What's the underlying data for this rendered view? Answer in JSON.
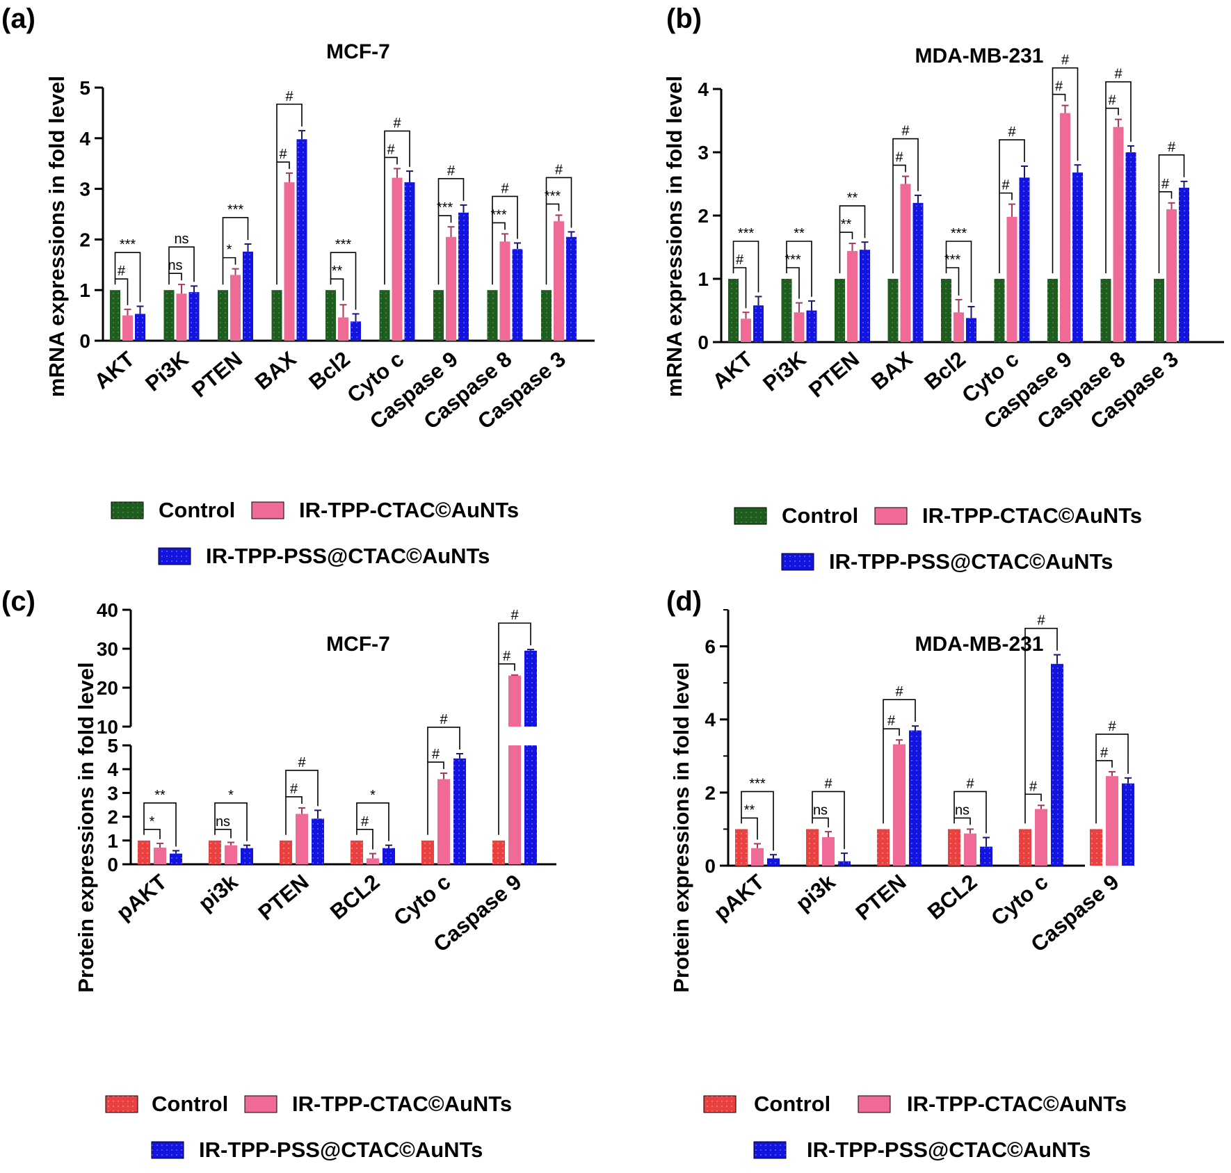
{
  "legend_series": [
    "Control",
    "IR-TPP-CTAC©AuNTs",
    "IR-TPP-PSS@CTAC©AuNTs"
  ],
  "colors": {
    "control_mrna": "#1f5d1f",
    "control_protein": "#e8413f",
    "ctac": "#ef6b96",
    "pss": "#1414e0"
  },
  "chart_data": [
    {
      "panel": "(a)",
      "type": "bar",
      "title": "MCF-7",
      "ylabel": "mRNA expressions in fold level",
      "categories": [
        "AKT",
        "Pi3K",
        "PTEN",
        "BAX",
        "Bcl2",
        "Cyto c",
        "Caspase 9",
        "Caspase 8",
        "Caspase 3"
      ],
      "series": [
        {
          "name": "Control",
          "values": [
            1,
            1,
            1,
            1,
            1,
            1,
            1,
            1,
            1
          ],
          "errors": [
            0,
            0,
            0,
            0,
            0,
            0,
            0,
            0,
            0
          ]
        },
        {
          "name": "IR-TPP-CTAC©AuNTs",
          "values": [
            0.5,
            0.93,
            1.3,
            3.13,
            0.46,
            3.22,
            2.05,
            1.96,
            2.36
          ],
          "errors": [
            0.12,
            0.18,
            0.12,
            0.18,
            0.25,
            0.18,
            0.2,
            0.15,
            0.12
          ]
        },
        {
          "name": "IR-TPP-PSS@CTAC©AuNTs",
          "values": [
            0.53,
            0.96,
            1.76,
            3.98,
            0.38,
            3.13,
            2.53,
            1.81,
            2.05
          ],
          "errors": [
            0.15,
            0.12,
            0.15,
            0.17,
            0.15,
            0.22,
            0.15,
            0.12,
            0.1
          ]
        }
      ],
      "significance": [
        {
          "cat": 0,
          "mid": "#",
          "far": "***"
        },
        {
          "cat": 1,
          "mid": "ns",
          "far": "ns"
        },
        {
          "cat": 2,
          "mid": "*",
          "far": "***"
        },
        {
          "cat": 3,
          "mid": "#",
          "far": "#"
        },
        {
          "cat": 4,
          "mid": "**",
          "far": "***"
        },
        {
          "cat": 5,
          "mid": "#",
          "far": "#"
        },
        {
          "cat": 6,
          "mid": "***",
          "far": "#"
        },
        {
          "cat": 7,
          "mid": "***",
          "far": "#"
        },
        {
          "cat": 8,
          "mid": "***",
          "far": "#"
        }
      ],
      "yticks": [
        "0",
        "1",
        "2",
        "3",
        "4",
        "5"
      ],
      "ylim": [
        0,
        5
      ]
    },
    {
      "panel": "(b)",
      "type": "bar",
      "title": "MDA-MB-231",
      "ylabel": "mRNA expressions in fold level",
      "categories": [
        "AKT",
        "Pi3K",
        "PTEN",
        "BAX",
        "Bcl2",
        "Cyto c",
        "Caspase 9",
        "Caspase 8",
        "Caspase 3"
      ],
      "series": [
        {
          "name": "Control",
          "values": [
            1,
            1,
            1,
            1,
            1,
            1,
            1,
            1,
            1
          ],
          "errors": [
            0,
            0,
            0,
            0,
            0,
            0,
            0,
            0,
            0
          ]
        },
        {
          "name": "IR-TPP-CTAC©AuNTs",
          "values": [
            0.37,
            0.47,
            1.44,
            2.5,
            0.47,
            1.98,
            3.62,
            3.4,
            2.1
          ],
          "errors": [
            0.1,
            0.15,
            0.12,
            0.12,
            0.2,
            0.2,
            0.12,
            0.12,
            0.1
          ]
        },
        {
          "name": "IR-TPP-PSS@CTAC©AuNTs",
          "values": [
            0.58,
            0.5,
            1.46,
            2.2,
            0.38,
            2.6,
            2.68,
            3.0,
            2.44
          ],
          "errors": [
            0.14,
            0.15,
            0.12,
            0.12,
            0.18,
            0.18,
            0.12,
            0.1,
            0.1
          ]
        }
      ],
      "significance": [
        {
          "cat": 0,
          "mid": "#",
          "far": "***"
        },
        {
          "cat": 1,
          "mid": "***",
          "far": "**"
        },
        {
          "cat": 2,
          "mid": "**",
          "far": "**"
        },
        {
          "cat": 3,
          "mid": "#",
          "far": "#"
        },
        {
          "cat": 4,
          "mid": "***",
          "far": "***"
        },
        {
          "cat": 5,
          "mid": "#",
          "far": "#"
        },
        {
          "cat": 6,
          "mid": "#",
          "far": "#"
        },
        {
          "cat": 7,
          "mid": "#",
          "far": "#"
        },
        {
          "cat": 8,
          "mid": "#",
          "far": "#"
        }
      ],
      "yticks": [
        "0",
        "1",
        "2",
        "3",
        "4"
      ],
      "ylim": [
        0,
        4
      ]
    },
    {
      "panel": "(c)",
      "type": "bar",
      "title": "MCF-7",
      "ylabel": "Protein expressions in fold level",
      "categories": [
        "pAKT",
        "pi3k",
        "PTEN",
        "BCL2",
        "Cyto c",
        "Caspase 9"
      ],
      "series": [
        {
          "name": "Control",
          "values": [
            1,
            1,
            1,
            1,
            1,
            1
          ],
          "errors": [
            0,
            0,
            0,
            0,
            0,
            0
          ]
        },
        {
          "name": "IR-TPP-CTAC©AuNTs",
          "values": [
            0.7,
            0.8,
            2.12,
            0.25,
            3.58,
            23.1
          ],
          "errors": [
            0.18,
            0.12,
            0.25,
            0.2,
            0.25,
            0.15
          ]
        },
        {
          "name": "IR-TPP-PSS@CTAC©AuNTs",
          "values": [
            0.45,
            0.68,
            1.92,
            0.68,
            4.45,
            29.5
          ],
          "errors": [
            0.12,
            0.12,
            0.35,
            0.12,
            0.2,
            0.3
          ]
        }
      ],
      "significance": [
        {
          "cat": 0,
          "mid": "*",
          "far": "**"
        },
        {
          "cat": 1,
          "mid": "ns",
          "far": "*"
        },
        {
          "cat": 2,
          "mid": "#",
          "far": "#"
        },
        {
          "cat": 3,
          "mid": "#",
          "far": "*"
        },
        {
          "cat": 4,
          "mid": "#",
          "far": "#"
        },
        {
          "cat": 5,
          "mid": "#",
          "far": "#"
        }
      ],
      "axis_break": {
        "lower": [
          0,
          5
        ],
        "upper": [
          10,
          40
        ]
      },
      "yticks_lower": [
        "0",
        "1",
        "2",
        "3",
        "4",
        "5"
      ],
      "yticks_upper": [
        "10",
        "20",
        "30",
        "40"
      ],
      "ylim": [
        0,
        40
      ]
    },
    {
      "panel": "(d)",
      "type": "bar",
      "title": "MDA-MB-231",
      "ylabel": "Protein expressions in fold level",
      "categories": [
        "pAKT",
        "pi3k",
        "PTEN",
        "BCL2",
        "Cyto c",
        "Caspase 9"
      ],
      "series": [
        {
          "name": "Control",
          "values": [
            1,
            1,
            1,
            1,
            1,
            1
          ],
          "errors": [
            0,
            0,
            0,
            0,
            0,
            0
          ]
        },
        {
          "name": "IR-TPP-CTAC©AuNTs",
          "values": [
            0.48,
            0.78,
            3.32,
            0.88,
            1.55,
            2.45
          ],
          "errors": [
            0.12,
            0.15,
            0.12,
            0.12,
            0.1,
            0.12
          ]
        },
        {
          "name": "IR-TPP-PSS@CTAC©AuNTs",
          "values": [
            0.2,
            0.12,
            3.7,
            0.52,
            5.52,
            2.25
          ],
          "errors": [
            0.1,
            0.22,
            0.12,
            0.25,
            0.25,
            0.15
          ]
        }
      ],
      "significance": [
        {
          "cat": 0,
          "mid": "**",
          "far": "***"
        },
        {
          "cat": 1,
          "mid": "ns",
          "far": "#"
        },
        {
          "cat": 2,
          "mid": "#",
          "far": "#"
        },
        {
          "cat": 3,
          "mid": "ns",
          "far": "#"
        },
        {
          "cat": 4,
          "mid": "#",
          "far": "#"
        },
        {
          "cat": 5,
          "mid": "#",
          "far": "#"
        }
      ],
      "yticks": [
        "0",
        "2",
        "4",
        "6"
      ],
      "ylim": [
        0,
        7
      ]
    }
  ]
}
